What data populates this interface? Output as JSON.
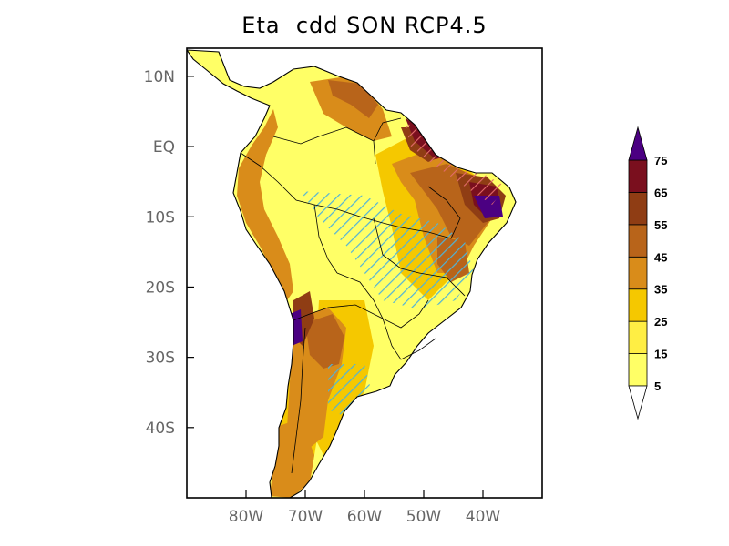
{
  "title": "Eta  cdd SON RCP4.5",
  "map": {
    "region": "South America",
    "lon_range": [
      -90,
      -30
    ],
    "lat_range": [
      -50,
      14
    ],
    "lat_ticks": [
      {
        "value": 10,
        "label": "10N"
      },
      {
        "value": 0,
        "label": "EQ"
      },
      {
        "value": -10,
        "label": "10S"
      },
      {
        "value": -20,
        "label": "20S"
      },
      {
        "value": -30,
        "label": "30S"
      },
      {
        "value": -40,
        "label": "40S"
      }
    ],
    "lon_ticks": [
      {
        "value": -80,
        "label": "80W"
      },
      {
        "value": -70,
        "label": "70W"
      },
      {
        "value": -60,
        "label": "60W"
      },
      {
        "value": -50,
        "label": "50W"
      },
      {
        "value": -40,
        "label": "40W"
      }
    ],
    "hatching_color": "#4fb3d9",
    "hatching_color_alt": "#e36b6b"
  },
  "colorbar": {
    "levels": [
      "5",
      "15",
      "25",
      "35",
      "45",
      "55",
      "65",
      "75"
    ],
    "colors": [
      "#ffff66",
      "#ffee44",
      "#f5c800",
      "#d98c1a",
      "#b8641a",
      "#8f3d14",
      "#7a0f1e",
      "#5c0a3c",
      "#4b0082"
    ],
    "low_extension_color": "#ffffff",
    "high_extension_color": "#4b0082"
  }
}
